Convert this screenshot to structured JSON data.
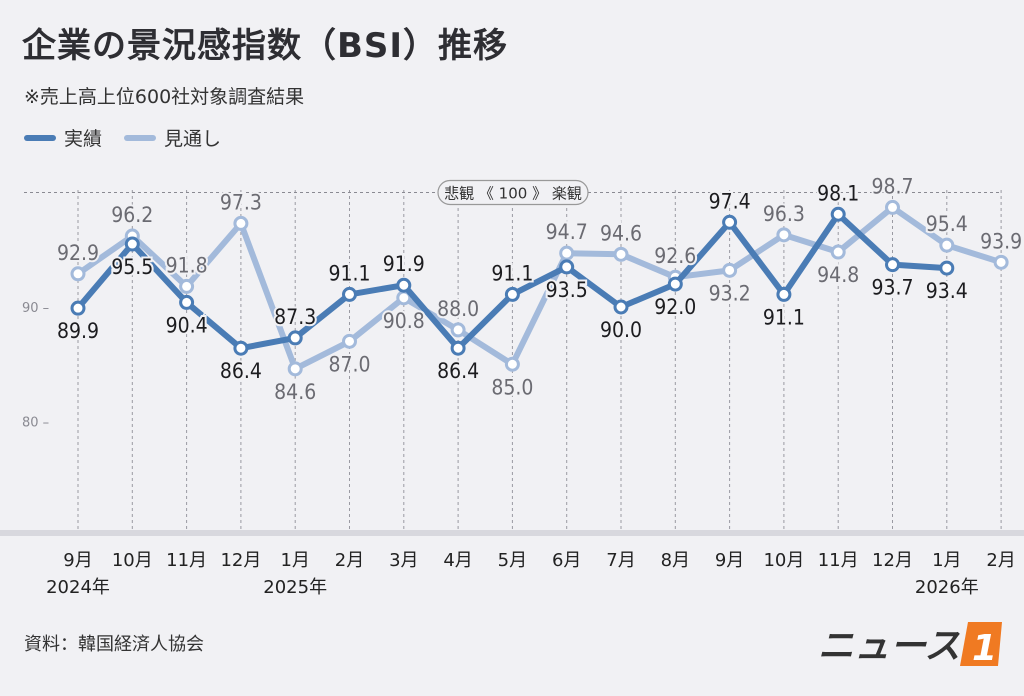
{
  "title": "企業の景況感指数（BSI）推移",
  "subtitle": "※売上高上位600社対象調査結果",
  "legend": {
    "actual": "実績",
    "forecast": "見通し"
  },
  "reference_label": {
    "left": "悲観",
    "value": "100",
    "right": "楽観"
  },
  "source": "資料：韓国経済人協会",
  "logo_text": "ニュース1",
  "colors": {
    "actual": "#4a7cb5",
    "forecast": "#a3badb",
    "background": "#f1f1f4"
  },
  "chart_data": {
    "type": "line",
    "categories": [
      "9月",
      "10月",
      "11月",
      "12月",
      "1月",
      "2月",
      "3月",
      "4月",
      "5月",
      "6月",
      "7月",
      "8月",
      "9月",
      "10月",
      "11月",
      "12月",
      "1月",
      "2月"
    ],
    "year_labels": [
      {
        "index": 0,
        "text": "2024年"
      },
      {
        "index": 4,
        "text": "2025年"
      },
      {
        "index": 16,
        "text": "2026年"
      }
    ],
    "series": [
      {
        "name": "実績",
        "values": [
          89.9,
          95.5,
          90.4,
          86.4,
          87.3,
          91.1,
          91.9,
          86.4,
          91.1,
          93.5,
          90.0,
          92.0,
          97.4,
          91.1,
          98.1,
          93.7,
          93.4,
          null
        ]
      },
      {
        "name": "見通し",
        "values": [
          92.9,
          96.2,
          91.8,
          97.3,
          84.6,
          87.0,
          90.8,
          88.0,
          85.0,
          94.7,
          94.6,
          92.6,
          93.2,
          96.3,
          94.8,
          98.7,
          95.4,
          93.9
        ]
      }
    ],
    "yticks": [
      80,
      90
    ],
    "reference_line": 100,
    "ylim": [
      72,
      105
    ]
  }
}
